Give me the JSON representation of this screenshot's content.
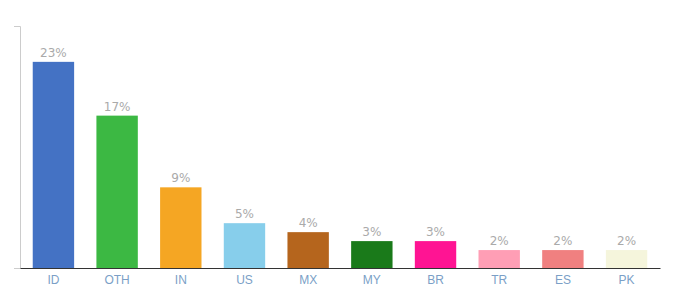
{
  "chart_data": {
    "type": "bar",
    "categories": [
      "ID",
      "OTH",
      "IN",
      "US",
      "MX",
      "MY",
      "BR",
      "TR",
      "ES",
      "PK"
    ],
    "values": [
      23,
      17,
      9,
      5,
      4,
      3,
      3,
      2,
      2,
      2
    ],
    "value_labels": [
      "23%",
      "17%",
      "9%",
      "5%",
      "4%",
      "3%",
      "3%",
      "2%",
      "2%",
      "2%"
    ],
    "colors": [
      "#4472c4",
      "#3cb843",
      "#f5a623",
      "#87ceeb",
      "#b5651d",
      "#1a7a1a",
      "#ff1493",
      "#ff9eb5",
      "#f08080",
      "#f5f5dc"
    ],
    "ylim": [
      0,
      27
    ],
    "yticks": [],
    "grid": false,
    "data_labels": true,
    "tick_labels": "x"
  }
}
